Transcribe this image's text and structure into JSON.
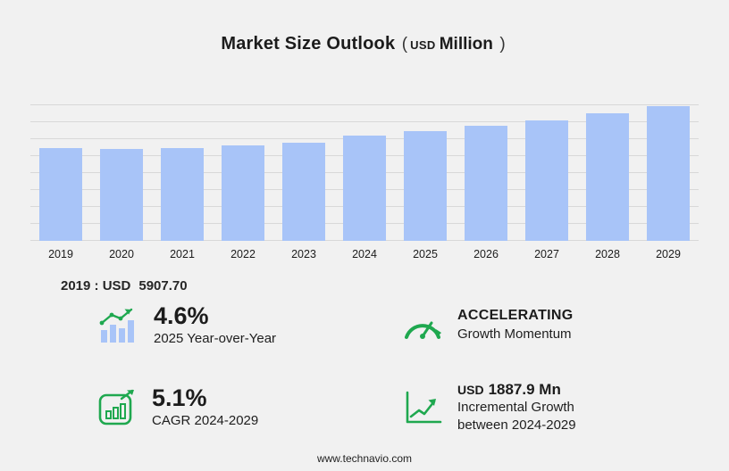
{
  "page": {
    "title": "Market Size Outlook",
    "title_paren_open": "(",
    "title_currency": "USD",
    "title_unit": "Million",
    "title_paren_close": ")",
    "footer": "www.technavio.com"
  },
  "colors": {
    "background": "#f1f1f1",
    "accent_green": "#1fa84f",
    "bar_blue": "#a8c4f8",
    "gridline": "#d8d8d8",
    "text": "#1c1c1c"
  },
  "base_year": {
    "label": "2019 : USD",
    "value": "5907.70"
  },
  "chart_data": {
    "type": "bar",
    "title": "Market Size Outlook (USD Million)",
    "categories": [
      "2019",
      "2020",
      "2021",
      "2022",
      "2023",
      "2024",
      "2025",
      "2026",
      "2027",
      "2028",
      "2029"
    ],
    "values": [
      5907.7,
      5840,
      5915,
      6080,
      6280,
      6690,
      6995,
      7330,
      7700,
      8120,
      8580
    ],
    "value_labeled": {
      "2019": 5907.7
    },
    "xlabel": "",
    "ylabel": "",
    "unit": "USD Million",
    "ylim": [
      0,
      8700
    ],
    "grid": true,
    "legend": "none",
    "bar_color": "#a8c4f8"
  },
  "stats": [
    {
      "icon": "yoy-bars-trend-icon",
      "value": "4.6%",
      "label": "2025 Year-over-Year"
    },
    {
      "icon": "speedometer-icon",
      "value": "ACCELERATING",
      "label": "Growth Momentum"
    },
    {
      "icon": "cagr-chart-frame-icon",
      "value": "5.1%",
      "label": "CAGR 2024-2029"
    },
    {
      "icon": "incremental-line-chart-icon",
      "value_currency": "USD",
      "value": "1887.9 Mn",
      "label_line1": "Incremental Growth",
      "label_line2": "between 2024-2029"
    }
  ]
}
